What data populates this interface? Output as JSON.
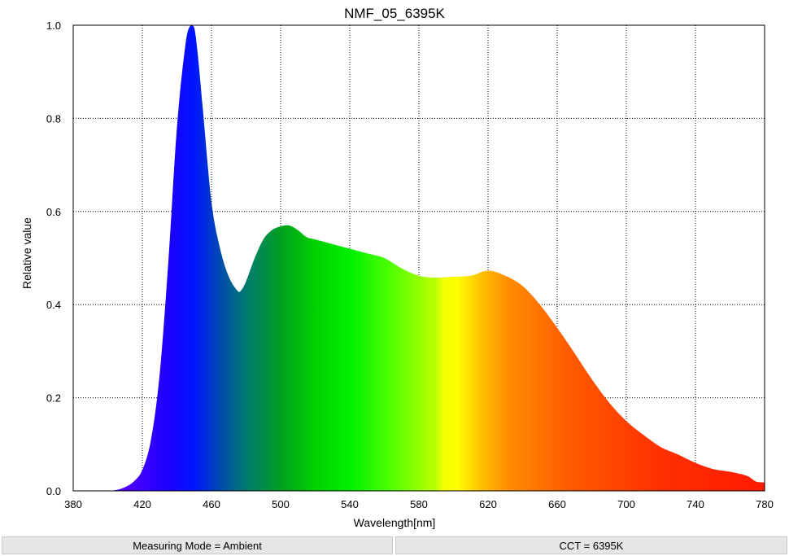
{
  "chart_data": {
    "type": "area",
    "title": "NMF_05_6395K",
    "xlabel": "Wavelength[nm]",
    "ylabel": "Relative value",
    "xlim": [
      380,
      780
    ],
    "ylim": [
      0,
      1.0
    ],
    "x_ticks": [
      "380",
      "420",
      "460",
      "500",
      "540",
      "580",
      "620",
      "660",
      "700",
      "740",
      "780"
    ],
    "y_ticks": [
      "0.0",
      "0.2",
      "0.4",
      "0.6",
      "0.8",
      "1.0"
    ],
    "grid": true,
    "fill": "visible-spectrum-gradient",
    "x": [
      400,
      405,
      410,
      415,
      420,
      425,
      430,
      435,
      440,
      445,
      448,
      450,
      452,
      455,
      460,
      465,
      470,
      475,
      477,
      480,
      485,
      490,
      495,
      500,
      505,
      510,
      515,
      520,
      530,
      540,
      550,
      560,
      570,
      580,
      590,
      600,
      610,
      620,
      630,
      640,
      650,
      660,
      670,
      680,
      690,
      700,
      710,
      720,
      730,
      740,
      750,
      760,
      770,
      775,
      780
    ],
    "y": [
      0.0,
      0.002,
      0.008,
      0.02,
      0.045,
      0.11,
      0.25,
      0.49,
      0.78,
      0.96,
      1.0,
      0.995,
      0.94,
      0.82,
      0.62,
      0.52,
      0.46,
      0.43,
      0.43,
      0.45,
      0.5,
      0.54,
      0.56,
      0.568,
      0.57,
      0.56,
      0.545,
      0.54,
      0.53,
      0.52,
      0.51,
      0.5,
      0.478,
      0.462,
      0.458,
      0.46,
      0.462,
      0.473,
      0.462,
      0.44,
      0.4,
      0.35,
      0.296,
      0.24,
      0.19,
      0.15,
      0.12,
      0.094,
      0.078,
      0.06,
      0.047,
      0.041,
      0.032,
      0.02,
      0.018
    ]
  },
  "status": {
    "measuring_mode": "Measuring Mode = Ambient",
    "cct": "CCT = 6395K"
  }
}
